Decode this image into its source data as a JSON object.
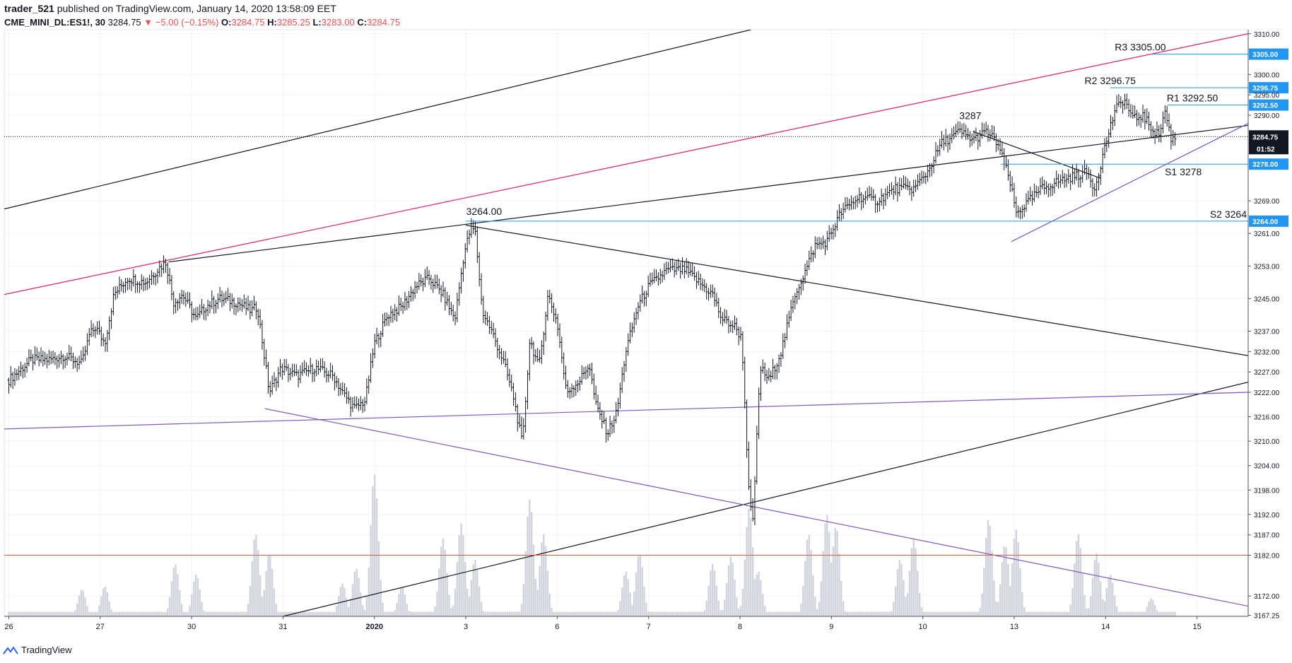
{
  "header": {
    "user": "trader_521",
    "published": "published on TradingView.com, January 14, 2020 13:58:09 EET",
    "symbol": "CME_MINI_DL:ES1!, 30",
    "last": "3284.75",
    "change": "▼ −5.00 (−0.15%)",
    "o_label": "O:",
    "o_value": "3284.75",
    "h_label": "H:",
    "h_value": "3285.25",
    "l_label": "L:",
    "l_value": "3283.00",
    "c_label": "C:",
    "c_value": "3284.75"
  },
  "footer": {
    "brand": "TradingView"
  },
  "colors": {
    "up": "#131722",
    "grid": "#f0f3fa",
    "axis": "#50535e",
    "volume": "#d1d4dc",
    "level": "#2196f3",
    "red_line": "#ef5350",
    "pink": "#e91e63",
    "purple": "#7e57c2"
  },
  "chart_data": {
    "type": "ohlc",
    "x_axis": {
      "ticks": [
        {
          "label": "26",
          "x": 0
        },
        {
          "label": "27",
          "x": 1
        },
        {
          "label": "30",
          "x": 2
        },
        {
          "label": "31",
          "x": 3
        },
        {
          "label": "2020",
          "x": 4
        },
        {
          "label": "3",
          "x": 5
        },
        {
          "label": "6",
          "x": 6
        },
        {
          "label": "7",
          "x": 7
        },
        {
          "label": "8",
          "x": 8
        },
        {
          "label": "9",
          "x": 9
        },
        {
          "label": "10",
          "x": 10
        },
        {
          "label": "13",
          "x": 11
        },
        {
          "label": "14",
          "x": 12
        },
        {
          "label": "15",
          "x": 13
        }
      ],
      "range": [
        -0.05,
        13.56
      ]
    },
    "y_axis": {
      "ticks": [
        3167.25,
        3172.0,
        3182.0,
        3187.0,
        3192.0,
        3198.0,
        3204.0,
        3210.0,
        3216.0,
        3222.0,
        3227.0,
        3232.0,
        3237.0,
        3245.0,
        3253.0,
        3261.0,
        3269.0,
        3278.0,
        3284.75,
        3290.0,
        3292.5,
        3295.0,
        3296.75,
        3300.0,
        3305.0,
        3310.0
      ],
      "range": [
        3167,
        3311
      ]
    },
    "price_path": [
      [
        0.0,
        3225
      ],
      [
        0.15,
        3228
      ],
      [
        0.25,
        3230
      ],
      [
        0.45,
        3230
      ],
      [
        0.6,
        3231
      ],
      [
        0.8,
        3229
      ],
      [
        0.88,
        3236
      ],
      [
        0.95,
        3238
      ],
      [
        1.05,
        3234
      ],
      [
        1.15,
        3246
      ],
      [
        1.3,
        3250
      ],
      [
        1.5,
        3249
      ],
      [
        1.62,
        3252
      ],
      [
        1.72,
        3254
      ],
      [
        1.8,
        3244
      ],
      [
        1.9,
        3246
      ],
      [
        2.05,
        3240
      ],
      [
        2.15,
        3243
      ],
      [
        2.3,
        3245
      ],
      [
        2.5,
        3244
      ],
      [
        2.65,
        3242
      ],
      [
        2.72,
        3243
      ],
      [
        2.85,
        3222
      ],
      [
        2.98,
        3228
      ],
      [
        3.15,
        3226
      ],
      [
        3.35,
        3228
      ],
      [
        3.55,
        3226
      ],
      [
        3.65,
        3222
      ],
      [
        3.78,
        3218
      ],
      [
        3.9,
        3220
      ],
      [
        4.0,
        3234
      ],
      [
        4.15,
        3241
      ],
      [
        4.3,
        3243
      ],
      [
        4.45,
        3248
      ],
      [
        4.6,
        3250
      ],
      [
        4.75,
        3246
      ],
      [
        4.88,
        3240
      ],
      [
        4.98,
        3256
      ],
      [
        5.05,
        3262
      ],
      [
        5.1,
        3262
      ],
      [
        5.18,
        3242
      ],
      [
        5.3,
        3236
      ],
      [
        5.42,
        3229
      ],
      [
        5.52,
        3221
      ],
      [
        5.62,
        3209
      ],
      [
        5.7,
        3235
      ],
      [
        5.8,
        3228
      ],
      [
        5.9,
        3246
      ],
      [
        6.0,
        3239
      ],
      [
        6.1,
        3222
      ],
      [
        6.25,
        3225
      ],
      [
        6.35,
        3229
      ],
      [
        6.42,
        3219
      ],
      [
        6.55,
        3212
      ],
      [
        6.65,
        3217
      ],
      [
        6.75,
        3232
      ],
      [
        6.88,
        3243
      ],
      [
        7.0,
        3248
      ],
      [
        7.2,
        3252
      ],
      [
        7.4,
        3252
      ],
      [
        7.55,
        3249
      ],
      [
        7.7,
        3246
      ],
      [
        7.8,
        3240
      ],
      [
        7.95,
        3238
      ],
      [
        8.02,
        3235
      ],
      [
        8.1,
        3196
      ],
      [
        8.14,
        3190
      ],
      [
        8.22,
        3228
      ],
      [
        8.32,
        3225
      ],
      [
        8.45,
        3232
      ],
      [
        8.6,
        3246
      ],
      [
        8.72,
        3252
      ],
      [
        8.82,
        3258
      ],
      [
        8.95,
        3259
      ],
      [
        9.1,
        3266
      ],
      [
        9.3,
        3270
      ],
      [
        9.5,
        3269
      ],
      [
        9.7,
        3272
      ],
      [
        9.9,
        3272
      ],
      [
        10.05,
        3276
      ],
      [
        10.2,
        3283
      ],
      [
        10.4,
        3286
      ],
      [
        10.55,
        3284
      ],
      [
        10.7,
        3286
      ],
      [
        10.82,
        3283
      ],
      [
        10.95,
        3274
      ],
      [
        11.02,
        3266
      ],
      [
        11.12,
        3268
      ],
      [
        11.3,
        3272
      ],
      [
        11.5,
        3274
      ],
      [
        11.65,
        3275
      ],
      [
        11.8,
        3276
      ],
      [
        11.88,
        3272
      ],
      [
        12.0,
        3283
      ],
      [
        12.1,
        3291
      ],
      [
        12.2,
        3294
      ],
      [
        12.3,
        3289
      ],
      [
        12.4,
        3290
      ],
      [
        12.5,
        3287
      ],
      [
        12.58,
        3285
      ],
      [
        12.65,
        3291
      ],
      [
        12.72,
        3284
      ],
      [
        12.78,
        3284.75
      ]
    ],
    "volume_spikes": [
      {
        "x": 0.8,
        "rel": 0.18
      },
      {
        "x": 1.05,
        "rel": 0.2
      },
      {
        "x": 1.82,
        "rel": 0.35
      },
      {
        "x": 2.05,
        "rel": 0.28
      },
      {
        "x": 2.7,
        "rel": 0.55
      },
      {
        "x": 2.85,
        "rel": 0.42
      },
      {
        "x": 3.65,
        "rel": 0.22
      },
      {
        "x": 3.8,
        "rel": 0.32
      },
      {
        "x": 4.0,
        "rel": 0.95
      },
      {
        "x": 4.3,
        "rel": 0.2
      },
      {
        "x": 4.75,
        "rel": 0.52
      },
      {
        "x": 4.95,
        "rel": 0.62
      },
      {
        "x": 5.1,
        "rel": 0.38
      },
      {
        "x": 5.7,
        "rel": 0.78
      },
      {
        "x": 5.85,
        "rel": 0.55
      },
      {
        "x": 6.75,
        "rel": 0.3
      },
      {
        "x": 6.9,
        "rel": 0.42
      },
      {
        "x": 7.7,
        "rel": 0.35
      },
      {
        "x": 7.9,
        "rel": 0.4
      },
      {
        "x": 8.1,
        "rel": 0.72
      },
      {
        "x": 8.2,
        "rel": 0.3
      },
      {
        "x": 8.75,
        "rel": 0.55
      },
      {
        "x": 8.95,
        "rel": 0.68
      },
      {
        "x": 9.05,
        "rel": 0.6
      },
      {
        "x": 9.75,
        "rel": 0.38
      },
      {
        "x": 9.9,
        "rel": 0.52
      },
      {
        "x": 10.72,
        "rel": 0.65
      },
      {
        "x": 10.9,
        "rel": 0.48
      },
      {
        "x": 11.02,
        "rel": 0.58
      },
      {
        "x": 11.7,
        "rel": 0.55
      },
      {
        "x": 11.9,
        "rel": 0.42
      },
      {
        "x": 12.05,
        "rel": 0.28
      },
      {
        "x": 12.5,
        "rel": 0.12
      }
    ],
    "trendlines": [
      {
        "color": "black",
        "p1": [
          -0.05,
          3267
        ],
        "p2": [
          8.12,
          3311
        ]
      },
      {
        "color": "pink",
        "p1": [
          -0.05,
          3246
        ],
        "p2": [
          13.56,
          3310
        ]
      },
      {
        "color": "black",
        "p1": [
          1.75,
          3254
        ],
        "p2": [
          13.56,
          3287.5
        ]
      },
      {
        "color": "black",
        "p1": [
          5.0,
          3263
        ],
        "p2": [
          13.56,
          3231
        ]
      },
      {
        "color": "black",
        "p1": [
          3.0,
          3167
        ],
        "p2": [
          13.56,
          3224.5
        ]
      },
      {
        "color": "purple",
        "p1": [
          -0.05,
          3213
        ],
        "p2": [
          13.56,
          3222
        ]
      },
      {
        "color": "purple",
        "p1": [
          2.8,
          3218
        ],
        "p2": [
          13.56,
          3169.5
        ]
      },
      {
        "color": "black",
        "p1": [
          10.55,
          3286
        ],
        "p2": [
          11.95,
          3274.5
        ]
      },
      {
        "color": "purple",
        "p1": [
          10.97,
          3259
        ],
        "p2": [
          13.56,
          3288
        ]
      }
    ],
    "levels": [
      {
        "label": "R3 3305.00",
        "price": 3305.0,
        "axis_label": "3305.00",
        "x_start": 12.5
      },
      {
        "label": "R2 3296.75",
        "price": 3296.75,
        "axis_label": "3296.75",
        "x_start": 12.05
      },
      {
        "label": "R1 3292.50",
        "price": 3292.5,
        "axis_label": "3292.50",
        "x_start": 12.68
      },
      {
        "label": "S1 3278",
        "price": 3278.0,
        "axis_label": "3278.00",
        "x_start": 10.85
      },
      {
        "label": "S2 3264",
        "price": 3264.0,
        "axis_label": "3264.00",
        "x_start": 5.0
      }
    ],
    "annotations": [
      {
        "text": "3287",
        "x": 10.52,
        "y": 3288
      },
      {
        "text": "3264.00",
        "x": 5.2,
        "y": 3264.5
      }
    ],
    "red_horizontal": 3182.0,
    "last_price": {
      "value": "3284.75",
      "countdown": "01:52"
    }
  }
}
